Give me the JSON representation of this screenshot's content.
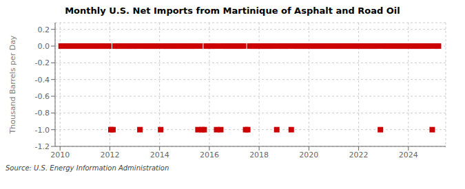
{
  "chart_data": {
    "type": "scatter",
    "title": "Monthly U.S. Net Imports from Martinique of Asphalt and Road Oil",
    "ylabel": "Thousand Barrels per Day",
    "source": "Source: U.S. Energy Information Administration",
    "color": "#cc0000",
    "marker": "square",
    "grid": true,
    "xlim": [
      2009.8,
      2025.5
    ],
    "ylim": [
      -1.2,
      0.28
    ],
    "xticks": [
      2010,
      2012,
      2014,
      2016,
      2018,
      2020,
      2022,
      2024
    ],
    "yticks": [
      0.2,
      {
        "value": 0,
        "label": "0.0"
      },
      -0.2,
      -0.4,
      -0.6,
      -0.8,
      {
        "value": -1,
        "label": "-1.0"
      },
      -1.2
    ],
    "x": [
      2010.0416666666667,
      2010.125,
      2010.2083333333333,
      2010.2916666666667,
      2010.375,
      2010.4583333333333,
      2010.5416666666667,
      2010.625,
      2010.7083333333333,
      2010.7916666666667,
      2010.875,
      2010.9583333333333,
      2011.0416666666667,
      2011.125,
      2011.2083333333333,
      2011.2916666666667,
      2011.375,
      2011.4583333333333,
      2011.5416666666667,
      2011.625,
      2011.7083333333333,
      2011.7916666666667,
      2011.875,
      2011.9583333333333,
      2012.0416666666667,
      2012.125,
      2012.2083333333333,
      2012.2916666666667,
      2012.375,
      2012.4583333333333,
      2012.5416666666667,
      2012.625,
      2012.7083333333333,
      2012.7916666666667,
      2012.875,
      2012.9583333333333,
      2013.0416666666667,
      2013.125,
      2013.2083333333333,
      2013.2916666666667,
      2013.375,
      2013.4583333333333,
      2013.5416666666667,
      2013.625,
      2013.7083333333333,
      2013.7916666666667,
      2013.875,
      2013.9583333333333,
      2014.0416666666667,
      2014.125,
      2014.2083333333333,
      2014.2916666666667,
      2014.375,
      2014.4583333333333,
      2014.5416666666667,
      2014.625,
      2014.7083333333333,
      2014.7916666666667,
      2014.875,
      2014.9583333333333,
      2015.0416666666667,
      2015.125,
      2015.2083333333333,
      2015.2916666666667,
      2015.375,
      2015.4583333333333,
      2015.5416666666667,
      2015.625,
      2015.7083333333333,
      2015.7916666666667,
      2015.875,
      2015.9583333333333,
      2016.0416666666667,
      2016.125,
      2016.2083333333333,
      2016.2916666666667,
      2016.375,
      2016.4583333333333,
      2016.5416666666667,
      2016.625,
      2016.7083333333333,
      2016.7916666666667,
      2016.875,
      2016.9583333333333,
      2017.0416666666667,
      2017.125,
      2017.2083333333333,
      2017.2916666666667,
      2017.375,
      2017.4583333333333,
      2017.5416666666667,
      2017.625,
      2017.7083333333333,
      2017.7916666666667,
      2017.875,
      2017.9583333333333,
      2018.0416666666667,
      2018.125,
      2018.2083333333333,
      2018.2916666666667,
      2018.375,
      2018.4583333333333,
      2018.5416666666667,
      2018.625,
      2018.7083333333333,
      2018.7916666666667,
      2018.875,
      2018.9583333333333,
      2019.0416666666667,
      2019.125,
      2019.2083333333333,
      2019.2916666666667,
      2019.375,
      2019.4583333333333,
      2019.5416666666667,
      2019.625,
      2019.7083333333333,
      2019.7916666666667,
      2019.875,
      2019.9583333333333,
      2020.0416666666667,
      2020.125,
      2020.2083333333333,
      2020.2916666666667,
      2020.375,
      2020.4583333333333,
      2020.5416666666667,
      2020.625,
      2020.7083333333333,
      2020.7916666666667,
      2020.875,
      2020.9583333333333,
      2021.0416666666667,
      2021.125,
      2021.2083333333333,
      2021.2916666666667,
      2021.375,
      2021.4583333333333,
      2021.5416666666667,
      2021.625,
      2021.7083333333333,
      2021.7916666666667,
      2021.875,
      2021.9583333333333,
      2022.0416666666667,
      2022.125,
      2022.2083333333333,
      2022.2916666666667,
      2022.375,
      2022.4583333333333,
      2022.5416666666667,
      2022.625,
      2022.7083333333333,
      2022.7916666666667,
      2022.875,
      2022.9583333333333,
      2023.0416666666667,
      2023.125,
      2023.2083333333333,
      2023.2916666666667,
      2023.375,
      2023.4583333333333,
      2023.5416666666667,
      2023.625,
      2023.7083333333333,
      2023.7916666666667,
      2023.875,
      2023.9583333333333,
      2024.0416666666667,
      2024.125,
      2024.2083333333333,
      2024.2916666666667,
      2024.375,
      2024.4583333333333,
      2024.5416666666667,
      2024.625,
      2024.7083333333333,
      2024.7916666666667,
      2024.875,
      2024.9583333333333,
      2025.0416666666667,
      2025.125,
      2025.2083333333333
    ],
    "values": [
      0,
      0,
      0,
      0,
      0,
      0,
      0,
      0,
      0,
      0,
      0,
      0,
      0,
      0,
      0,
      0,
      0,
      0,
      0,
      0,
      0,
      0,
      0,
      0,
      -1,
      -1,
      0,
      0,
      0,
      0,
      0,
      0,
      0,
      0,
      0,
      0,
      0,
      0,
      -1,
      0,
      0,
      0,
      0,
      0,
      0,
      0,
      0,
      0,
      -1,
      0,
      0,
      0,
      0,
      0,
      0,
      0,
      0,
      0,
      0,
      0,
      0,
      0,
      0,
      0,
      0,
      0,
      -1,
      0,
      -1,
      -1,
      0,
      0,
      0,
      0,
      0,
      -1,
      0,
      -1,
      0,
      0,
      0,
      0,
      0,
      0,
      0,
      0,
      0,
      0,
      0,
      -1,
      -1,
      0,
      0,
      0,
      0,
      0,
      0,
      0,
      0,
      0,
      0,
      0,
      0,
      0,
      -1,
      0,
      0,
      0,
      0,
      0,
      0,
      -1,
      0,
      0,
      0,
      0,
      0,
      0,
      0,
      0,
      0,
      0,
      0,
      0,
      0,
      0,
      0,
      0,
      0,
      0,
      0,
      0,
      0,
      0,
      0,
      0,
      0,
      0,
      0,
      0,
      0,
      0,
      0,
      0,
      0,
      0,
      0,
      0,
      0,
      0,
      0,
      0,
      0,
      0,
      -1,
      0,
      0,
      0,
      0,
      0,
      0,
      0,
      0,
      0,
      0,
      0,
      0,
      0,
      0,
      0,
      0,
      0,
      0,
      0,
      0,
      0,
      0,
      0,
      0,
      -1,
      0,
      0,
      0
    ]
  }
}
